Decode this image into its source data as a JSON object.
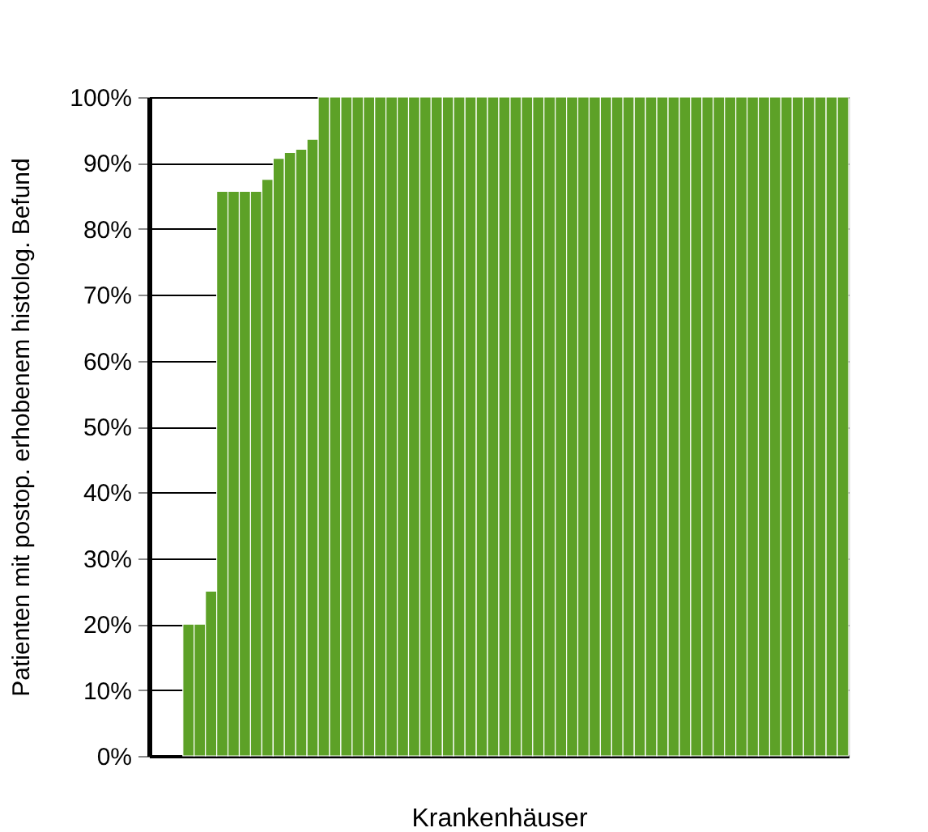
{
  "chart_data": {
    "type": "bar",
    "xlabel": "Krankenhäuser",
    "ylabel": "Patienten mit postop. erhobenem histolog. Befund",
    "categories": [
      null,
      null,
      null,
      null,
      null,
      null,
      null,
      null,
      null,
      null,
      null,
      null,
      null,
      null,
      null,
      null,
      null,
      null,
      null,
      null,
      null,
      null,
      null,
      null,
      null,
      null,
      null,
      null,
      null,
      null,
      null,
      null,
      null,
      null,
      null,
      null,
      null,
      null,
      null,
      null,
      null,
      null,
      null,
      null,
      null,
      null,
      null,
      null,
      null,
      null,
      null,
      null,
      null,
      null,
      null,
      null,
      null,
      null,
      null,
      null,
      null,
      null
    ],
    "values": [
      0,
      0,
      0,
      20,
      20,
      25,
      85.7,
      85.7,
      85.7,
      85.7,
      87.5,
      90.7,
      91.6,
      92.1,
      93.6,
      100,
      100,
      100,
      100,
      100,
      100,
      100,
      100,
      100,
      100,
      100,
      100,
      100,
      100,
      100,
      100,
      100,
      100,
      100,
      100,
      100,
      100,
      100,
      100,
      100,
      100,
      100,
      100,
      100,
      100,
      100,
      100,
      100,
      100,
      100,
      100,
      100,
      100,
      100,
      100,
      100,
      100,
      100,
      100,
      100,
      100,
      100
    ],
    "color": "#5da127",
    "ylim": [
      0,
      100
    ],
    "yticks": [
      {
        "value": 0,
        "label": "0%"
      },
      {
        "value": 10,
        "label": "10%"
      },
      {
        "value": 20,
        "label": "20%"
      },
      {
        "value": 30,
        "label": "30%"
      },
      {
        "value": 40,
        "label": "40%"
      },
      {
        "value": 50,
        "label": "50%"
      },
      {
        "value": 60,
        "label": "60%"
      },
      {
        "value": 70,
        "label": "70%"
      },
      {
        "value": 80,
        "label": "80%"
      },
      {
        "value": 90,
        "label": "90%"
      },
      {
        "value": 100,
        "label": "100%"
      }
    ],
    "grid": "y",
    "tick_labels": "y"
  }
}
